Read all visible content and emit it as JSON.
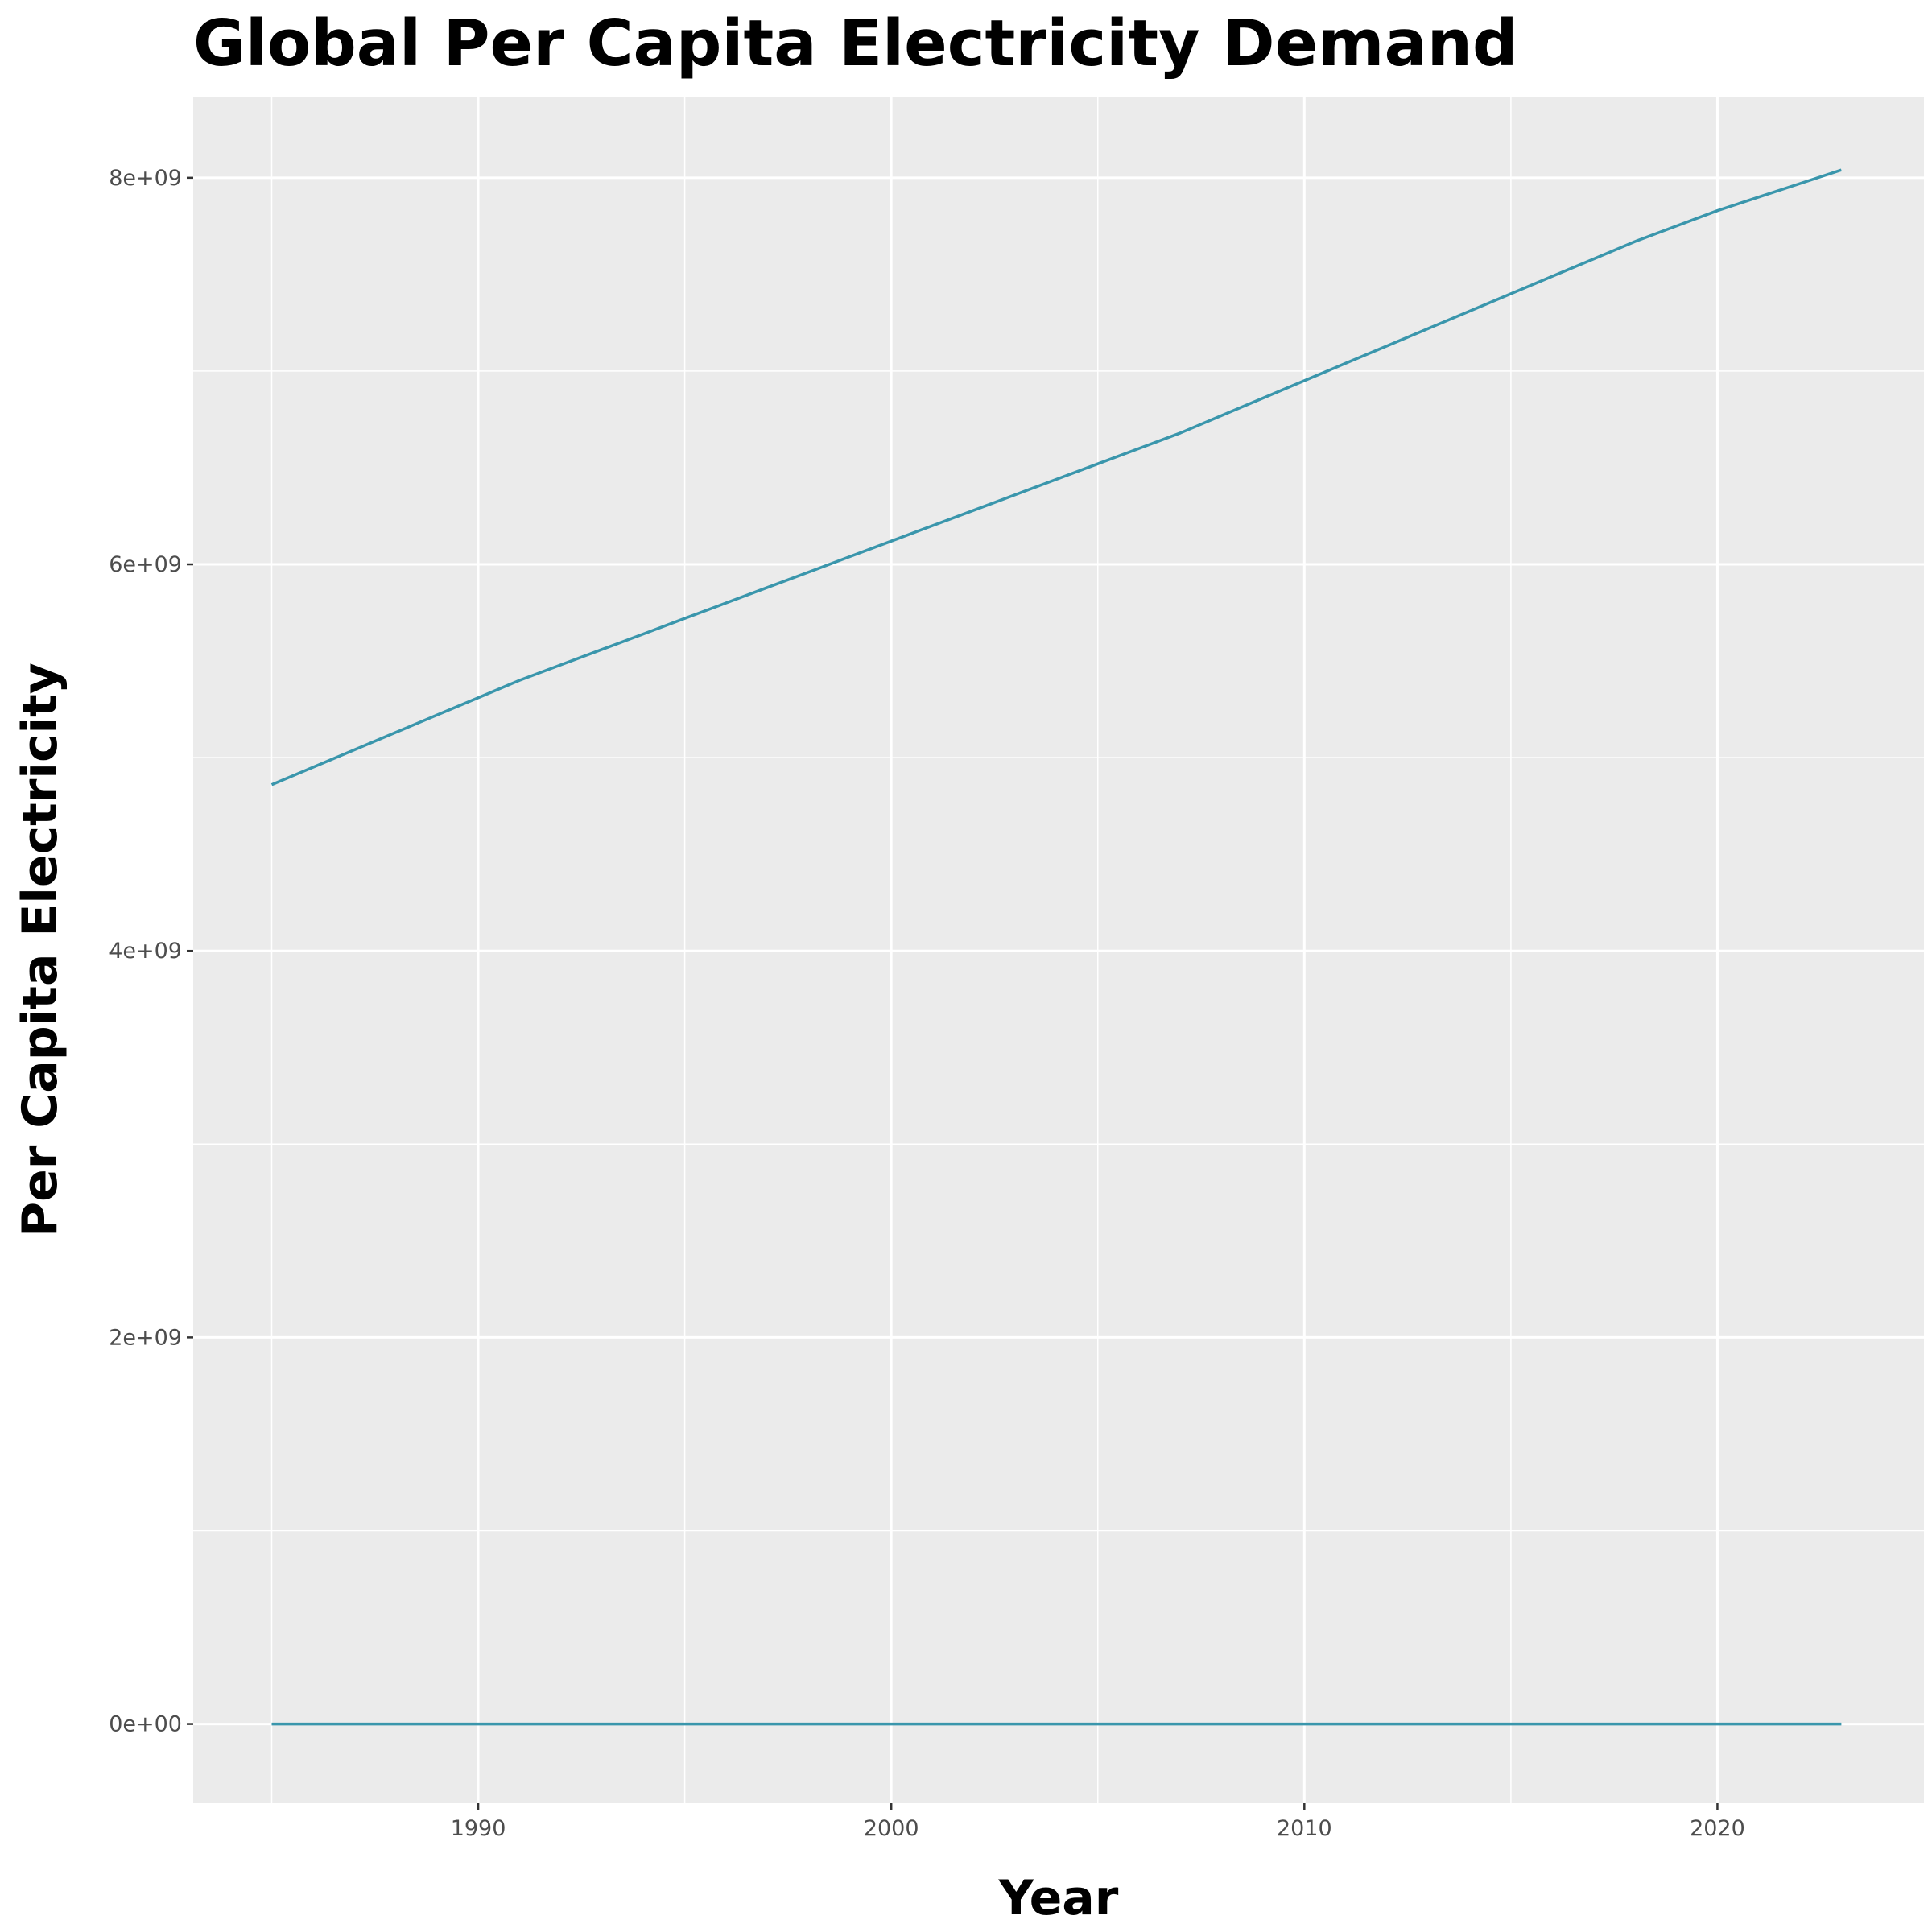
{
  "chart_data": {
    "type": "line",
    "title": "Global Per Capita Electricity Demand",
    "xlabel": "Year",
    "ylabel": "Per Capita Electricity",
    "xlim": [
      1983.1,
      2025.0
    ],
    "ylim": [
      -410000000,
      8420000000
    ],
    "xticks": [
      1990,
      2000,
      2010,
      2020
    ],
    "yticks": [
      0,
      2000000000,
      4000000000,
      6000000000,
      8000000000
    ],
    "ytick_labels": [
      "0e+00",
      "2e+09",
      "4e+09",
      "6e+09",
      "8e+09"
    ],
    "grid": true,
    "legend": "none",
    "colors": {
      "line": "#3a96ac",
      "panel": "#ebebeb",
      "grid": "#ffffff"
    },
    "series": [
      {
        "x": [
          1985,
          1986,
          1987,
          1988,
          1989,
          1990,
          1991,
          1992,
          1993,
          1994,
          1995,
          1996,
          1997,
          1998,
          1999,
          2000,
          2001,
          2002,
          2003,
          2004,
          2005,
          2006,
          2007,
          2008,
          2009,
          2010,
          2011,
          2012,
          2013,
          2014,
          2015,
          2016,
          2017,
          2018,
          2019,
          2020,
          2021,
          2022,
          2023
        ],
        "values": [
          4860000000,
          4950000000,
          5040000000,
          5130000000,
          5220000000,
          5310000000,
          5400000000,
          5480000000,
          5560000000,
          5640000000,
          5720000000,
          5800000000,
          5880000000,
          5960000000,
          6040000000,
          6120000000,
          6200000000,
          6280000000,
          6360000000,
          6440000000,
          6520000000,
          6600000000,
          6680000000,
          6770000000,
          6860000000,
          6950000000,
          7040000000,
          7130000000,
          7220000000,
          7310000000,
          7400000000,
          7490000000,
          7580000000,
          7670000000,
          7750000000,
          7830000000,
          7900000000,
          7970000000,
          8040000000
        ]
      },
      {
        "x": [
          1985,
          1990,
          2000,
          2010,
          2020,
          2023
        ],
        "values": [
          0,
          0,
          0,
          0,
          0,
          0
        ]
      }
    ]
  }
}
